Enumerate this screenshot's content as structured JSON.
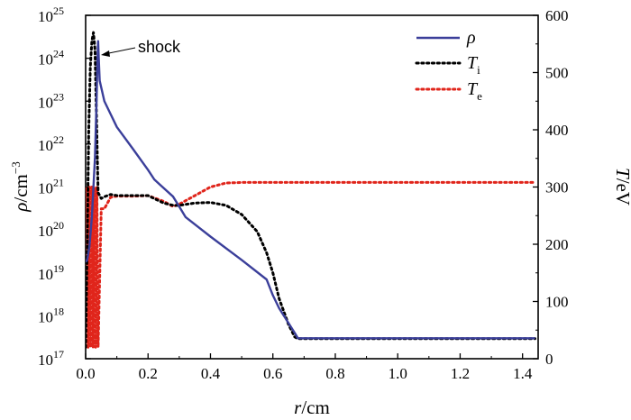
{
  "chart_data": {
    "type": "line",
    "x_axis": {
      "label_symbol": "r",
      "label_unit": "/cm",
      "range": [
        0,
        1.45
      ],
      "ticks": [
        0.0,
        0.2,
        0.4,
        0.6,
        0.8,
        1.0,
        1.2,
        1.4
      ],
      "tick_labels": [
        "0.0",
        "0.2",
        "0.4",
        "0.6",
        "0.8",
        "1.0",
        "1.2",
        "1.4"
      ]
    },
    "y_left_axis": {
      "label_symbol": "ρ",
      "label_unit": "/cm",
      "label_exponent": "−3",
      "scale": "log",
      "range": [
        1e+17,
        1e+25
      ],
      "tick_base": "10",
      "tick_exponents": [
        "17",
        "18",
        "19",
        "20",
        "21",
        "22",
        "23",
        "24",
        "25"
      ]
    },
    "y_right_axis": {
      "label_symbol": "T",
      "label_unit": "/eV",
      "range": [
        0,
        600
      ],
      "ticks": [
        0,
        100,
        200,
        300,
        400,
        500,
        600
      ],
      "tick_labels": [
        "0",
        "100",
        "200",
        "300",
        "400",
        "500",
        "600"
      ]
    },
    "legend": {
      "placement": "top-right",
      "items": [
        {
          "symbol": "ρ",
          "subscript": "",
          "color": "#3b3f9a",
          "style": "solid"
        },
        {
          "symbol": "T",
          "subscript": "i",
          "color": "#000000",
          "style": "dotted"
        },
        {
          "symbol": "T",
          "subscript": "e",
          "color": "#e0251b",
          "style": "dotted"
        }
      ]
    },
    "annotation": {
      "text": "shock",
      "x": 0.04,
      "y": 2.5e+24
    },
    "series": [
      {
        "key": "rho",
        "axis": "left",
        "color": "#3b3f9a",
        "x": [
          0.0,
          0.005,
          0.012,
          0.02,
          0.025,
          0.03,
          0.035,
          0.038,
          0.04,
          0.042,
          0.045,
          0.06,
          0.08,
          0.1,
          0.15,
          0.2,
          0.22,
          0.24,
          0.28,
          0.3,
          0.32,
          0.4,
          0.5,
          0.58,
          0.6,
          0.62,
          0.67,
          0.68,
          0.8,
          1.0,
          1.2,
          1.44
        ],
        "y": [
          1.8e+19,
          2e+19,
          4e+19,
          2e+20,
          1e+21,
          5e+21,
          1e+23,
          1e+24,
          2.5e+24,
          1e+24,
          3e+23,
          1e+23,
          5e+22,
          2.5e+22,
          8e+21,
          2.5e+21,
          1.5e+21,
          1.1e+21,
          6e+20,
          3.5e+20,
          2e+20,
          7e+19,
          2e+19,
          7e+18,
          3e+18,
          1.5e+18,
          4e+17,
          3e+17,
          3e+17,
          3e+17,
          3e+17,
          3e+17
        ]
      },
      {
        "key": "Ti",
        "axis": "right",
        "color": "#000000",
        "x": [
          0.0,
          0.005,
          0.01,
          0.015,
          0.02,
          0.025,
          0.03,
          0.04,
          0.05,
          0.06,
          0.08,
          0.1,
          0.15,
          0.2,
          0.25,
          0.28,
          0.3,
          0.35,
          0.4,
          0.45,
          0.5,
          0.55,
          0.58,
          0.6,
          0.62,
          0.65,
          0.67,
          0.68,
          0.8,
          1.0,
          1.2,
          1.44
        ],
        "y": [
          20,
          200,
          400,
          510,
          555,
          570,
          540,
          290,
          280,
          283,
          287,
          285,
          285,
          285,
          272,
          268,
          268,
          272,
          273,
          268,
          252,
          222,
          185,
          150,
          105,
          60,
          38,
          35,
          35,
          35,
          35,
          35
        ]
      },
      {
        "key": "Te",
        "axis": "right",
        "color": "#e0251b",
        "x": [
          0.0,
          0.004,
          0.008,
          0.012,
          0.016,
          0.02,
          0.024,
          0.028,
          0.032,
          0.036,
          0.04,
          0.05,
          0.06,
          0.08,
          0.1,
          0.15,
          0.2,
          0.25,
          0.28,
          0.3,
          0.35,
          0.4,
          0.45,
          0.5,
          0.55,
          0.6,
          0.8,
          1.0,
          1.2,
          1.44
        ],
        "y": [
          20,
          300,
          20,
          300,
          20,
          300,
          20,
          300,
          20,
          300,
          20,
          262,
          262,
          282,
          284,
          284,
          285,
          275,
          266,
          270,
          285,
          300,
          307,
          308,
          308,
          308,
          308,
          308,
          308,
          308
        ]
      }
    ]
  }
}
